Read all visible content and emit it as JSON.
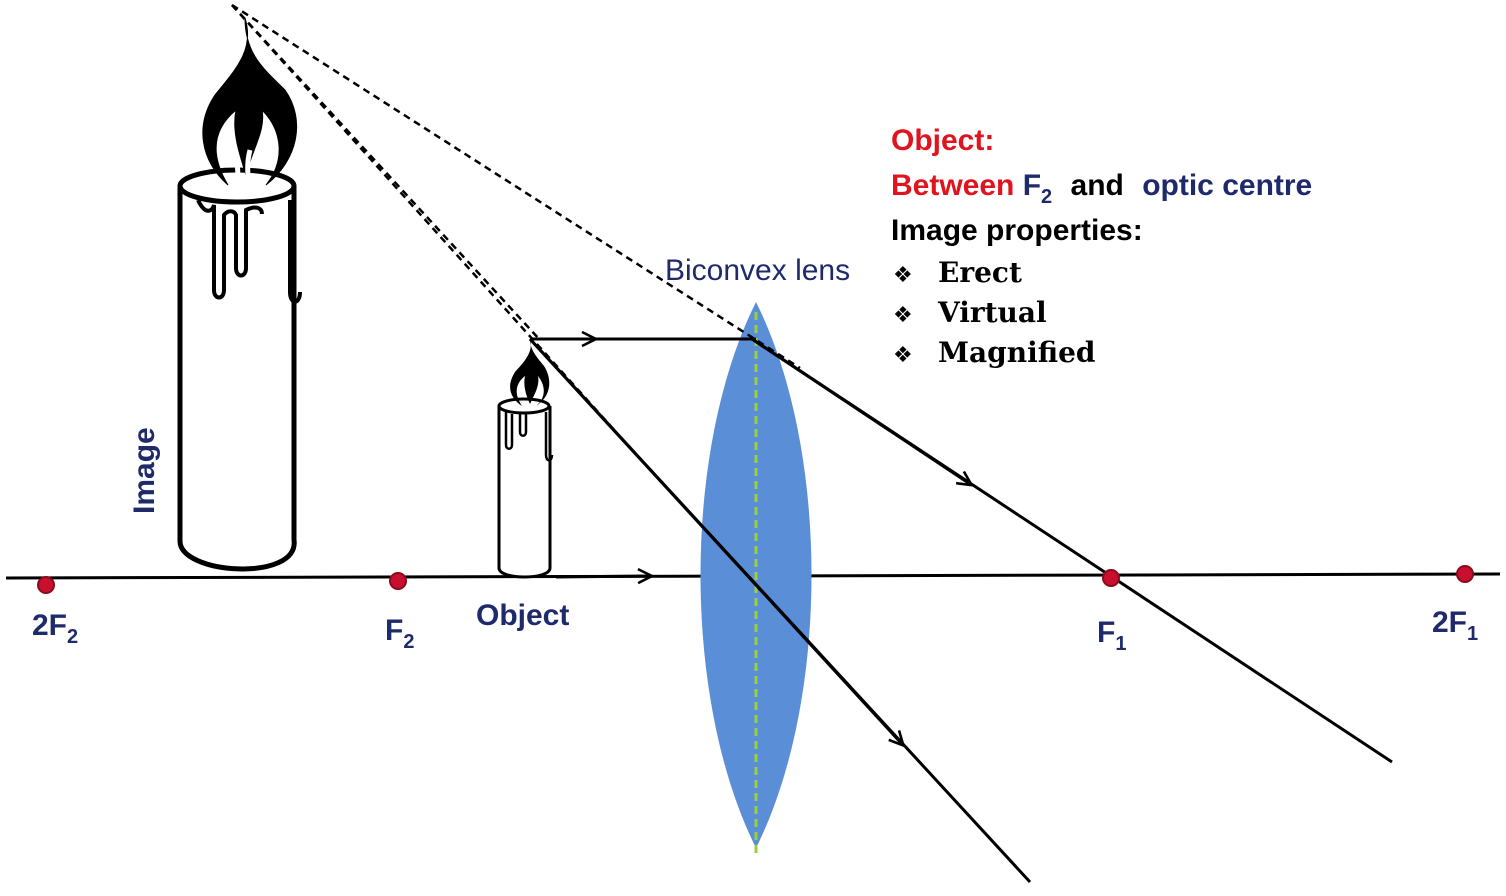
{
  "colors": {
    "label_blue": "#1f2a6b",
    "red": "#e0141e",
    "lens_fill": "#5a8fd8",
    "lens_axis": "#9bcf3c",
    "point_red": "#c8102e"
  },
  "labels": {
    "image": "Image",
    "object": "Object",
    "lens": "Biconvex lens",
    "points": {
      "p2f2_main": "2F",
      "p2f2_sub": "2",
      "f2_main": "F",
      "f2_sub": "2",
      "f1_main": "F",
      "f1_sub": "1",
      "p2f1_main": "2F",
      "p2f1_sub": "1"
    }
  },
  "info": {
    "heading": "Object:",
    "between_word": "Between",
    "f_main": "F",
    "f_sub": "2",
    "and_word": "and",
    "optic_centre": "optic centre",
    "image_properties": "Image properties:",
    "bullet_glyph": "❖",
    "properties": [
      "Erect",
      "Virtual",
      "Magnified"
    ]
  }
}
